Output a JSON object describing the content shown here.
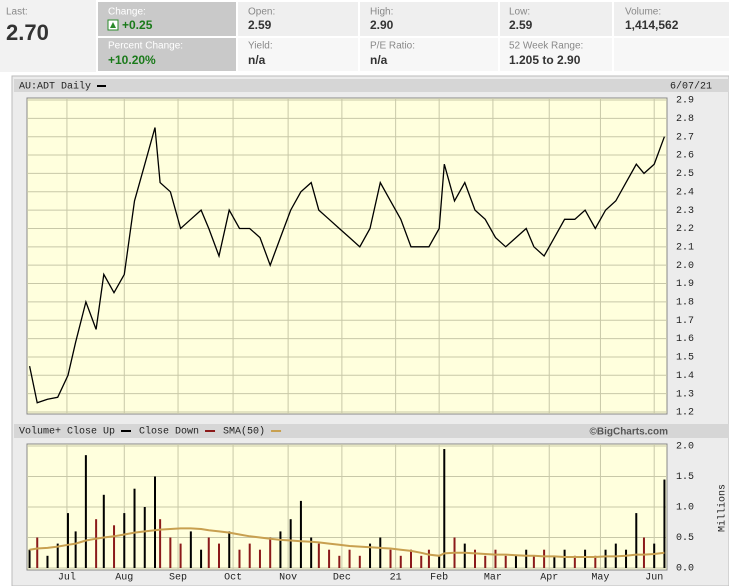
{
  "quote": {
    "last": {
      "label": "Last:",
      "value": "2.70"
    },
    "change": {
      "label": "Change:",
      "value": "+0.25"
    },
    "percent_change": {
      "label": "Percent Change:",
      "value": "+10.20%"
    },
    "open": {
      "label": "Open:",
      "value": "2.59"
    },
    "yield": {
      "label": "Yield:",
      "value": "n/a"
    },
    "high": {
      "label": "High:",
      "value": "2.90"
    },
    "pe_ratio": {
      "label": "P/E Ratio:",
      "value": "n/a"
    },
    "low": {
      "label": "Low:",
      "value": "2.59"
    },
    "week52_range": {
      "label": "52 Week Range:",
      "value": "1.205 to 2.90"
    },
    "volume": {
      "label": "Volume:",
      "value": "1,414,562"
    }
  },
  "chart_data": [
    {
      "type": "line",
      "title": "AU:ADT Daily",
      "date": "6/07/21",
      "color": "#000000",
      "x": [
        1,
        4,
        8,
        12,
        16,
        19,
        23,
        27,
        30,
        34,
        38,
        42,
        46,
        50,
        52,
        56,
        60,
        64,
        68,
        71,
        75,
        79,
        83,
        87,
        91,
        95,
        99,
        103,
        107,
        111,
        114,
        118,
        122,
        126,
        130,
        134,
        138,
        142,
        146,
        150,
        154,
        157,
        161,
        163,
        167,
        171,
        175,
        179,
        183,
        187,
        191,
        195,
        198,
        202,
        206,
        210,
        214,
        218,
        222,
        226,
        230,
        234,
        238,
        241,
        245,
        249
      ],
      "values": [
        1.45,
        1.25,
        1.27,
        1.28,
        1.4,
        1.58,
        1.8,
        1.65,
        1.95,
        1.85,
        1.95,
        2.35,
        2.55,
        2.75,
        2.45,
        2.4,
        2.2,
        2.25,
        2.3,
        2.2,
        2.05,
        2.3,
        2.2,
        2.2,
        2.15,
        2.0,
        2.15,
        2.3,
        2.4,
        2.45,
        2.3,
        2.25,
        2.2,
        2.15,
        2.1,
        2.2,
        2.45,
        2.35,
        2.25,
        2.1,
        2.1,
        2.1,
        2.2,
        2.55,
        2.35,
        2.45,
        2.3,
        2.25,
        2.15,
        2.1,
        2.15,
        2.2,
        2.1,
        2.05,
        2.15,
        2.25,
        2.25,
        2.3,
        2.2,
        2.3,
        2.35,
        2.45,
        2.55,
        2.5,
        2.55,
        2.7
      ],
      "xlim": [
        0,
        250
      ],
      "ylim": [
        1.2,
        2.9
      ],
      "yticks": [
        1.2,
        1.3,
        1.4,
        1.5,
        1.6,
        1.7,
        1.8,
        1.9,
        {
          "value": 2,
          "label": "2.0"
        },
        2.1,
        2.2,
        2.3,
        2.4,
        2.5,
        2.6,
        2.7,
        2.8,
        2.9
      ],
      "grid": true
    },
    {
      "type": "bar",
      "credit": "©BigCharts.com",
      "ylabel": "Millions",
      "x": [
        1,
        4,
        8,
        12,
        16,
        19,
        23,
        27,
        30,
        34,
        38,
        42,
        46,
        50,
        52,
        56,
        60,
        64,
        68,
        71,
        75,
        79,
        83,
        87,
        91,
        95,
        99,
        103,
        107,
        111,
        114,
        118,
        122,
        126,
        130,
        134,
        138,
        142,
        146,
        150,
        154,
        157,
        161,
        163,
        167,
        171,
        175,
        179,
        183,
        187,
        191,
        195,
        198,
        202,
        206,
        210,
        214,
        218,
        222,
        226,
        230,
        234,
        238,
        241,
        245,
        249
      ],
      "series": [
        {
          "name": "Volume+ Close Up",
          "color": "#000000",
          "values": [
            0.3,
            null,
            0.2,
            0.4,
            0.9,
            0.6,
            1.85,
            null,
            1.2,
            null,
            0.9,
            1.3,
            1.0,
            1.5,
            null,
            null,
            null,
            0.6,
            0.3,
            null,
            null,
            0.6,
            null,
            null,
            null,
            null,
            0.6,
            0.8,
            1.1,
            0.5,
            null,
            null,
            null,
            null,
            null,
            0.4,
            0.5,
            null,
            null,
            null,
            null,
            null,
            0.2,
            1.95,
            null,
            0.4,
            null,
            null,
            null,
            null,
            0.2,
            0.3,
            null,
            null,
            0.2,
            0.3,
            null,
            0.3,
            null,
            0.3,
            0.4,
            0.3,
            0.9,
            null,
            0.4,
            1.45
          ]
        },
        {
          "name": "Close Down",
          "color": "#8b1a1a",
          "values": [
            null,
            0.5,
            null,
            null,
            null,
            null,
            null,
            0.8,
            null,
            0.7,
            null,
            null,
            null,
            null,
            0.8,
            0.5,
            0.4,
            null,
            null,
            0.5,
            0.4,
            null,
            0.3,
            0.4,
            0.3,
            0.5,
            null,
            null,
            null,
            null,
            0.4,
            0.3,
            0.2,
            0.3,
            0.2,
            null,
            null,
            0.3,
            0.2,
            0.3,
            0.2,
            0.3,
            null,
            null,
            0.5,
            null,
            0.3,
            0.2,
            0.3,
            0.2,
            null,
            null,
            0.2,
            0.3,
            null,
            null,
            0.2,
            null,
            0.2,
            null,
            null,
            null,
            null,
            0.5,
            null,
            null
          ]
        },
        {
          "name": "SMA(50)",
          "color": "#c8a050",
          "values": [
            0.3,
            0.32,
            0.33,
            0.35,
            0.38,
            0.4,
            0.45,
            0.48,
            0.5,
            0.52,
            0.55,
            0.58,
            0.6,
            0.62,
            0.63,
            0.64,
            0.65,
            0.65,
            0.64,
            0.62,
            0.6,
            0.58,
            0.55,
            0.52,
            0.5,
            0.48,
            0.46,
            0.45,
            0.44,
            0.43,
            0.42,
            0.4,
            0.38,
            0.36,
            0.35,
            0.34,
            0.33,
            0.32,
            0.3,
            0.28,
            0.25,
            0.22,
            0.2,
            0.24,
            0.25,
            0.25,
            0.24,
            0.23,
            0.22,
            0.22,
            0.21,
            0.2,
            0.2,
            0.19,
            0.19,
            0.18,
            0.18,
            0.18,
            0.18,
            0.19,
            0.19,
            0.2,
            0.22,
            0.22,
            0.23,
            0.25
          ]
        }
      ],
      "xlim": [
        0,
        250
      ],
      "ylim": [
        0,
        2
      ],
      "xticks": [
        {
          "value": 15.6,
          "label": "Jul"
        },
        {
          "value": 38,
          "label": "Aug"
        },
        {
          "value": 59,
          "label": "Sep"
        },
        {
          "value": 80.5,
          "label": "Oct"
        },
        {
          "value": 102,
          "label": "Nov"
        },
        {
          "value": 123,
          "label": "Dec"
        },
        {
          "value": 144,
          "label": "21"
        },
        {
          "value": 161,
          "label": "Feb"
        },
        {
          "value": 182,
          "label": "Mar"
        },
        {
          "value": 204,
          "label": "Apr"
        },
        {
          "value": 224,
          "label": "May"
        },
        {
          "value": 245,
          "label": "Jun"
        }
      ],
      "yticks": [
        {
          "value": 0,
          "label": "0.0"
        },
        0.5,
        {
          "value": 1,
          "label": "1.0"
        },
        1.5,
        {
          "value": 2,
          "label": "2.0"
        }
      ],
      "grid": true
    }
  ]
}
